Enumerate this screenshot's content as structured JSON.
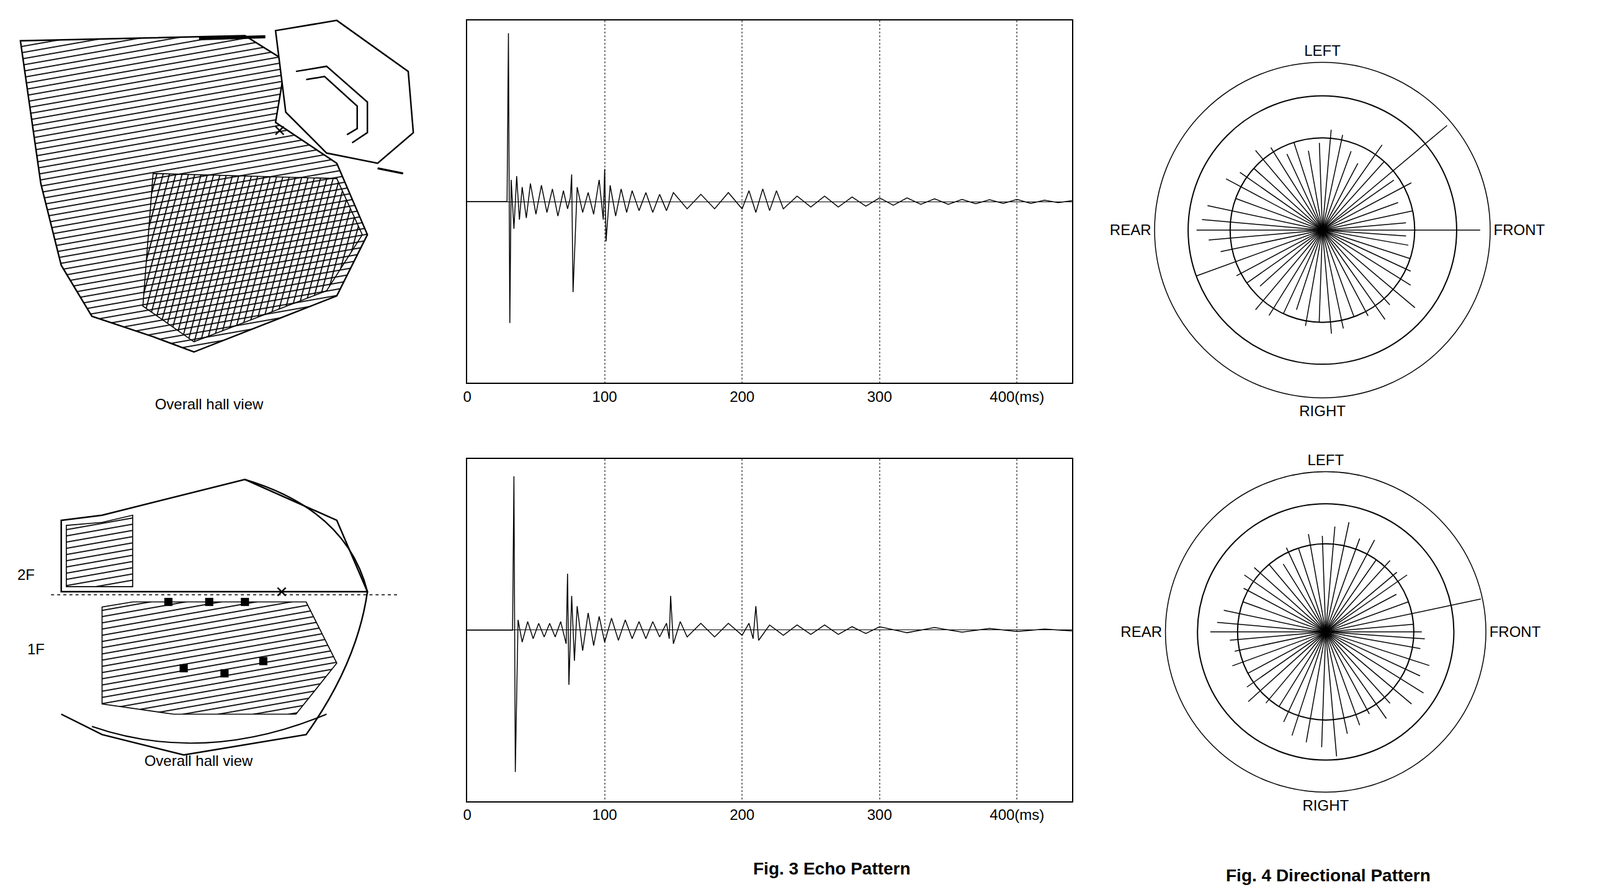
{
  "hall_views": [
    {
      "caption": "Overall hall view"
    },
    {
      "caption": "Overall hall view",
      "floor_labels": [
        "2F",
        "1F"
      ]
    }
  ],
  "captions": {
    "echo": "Fig. 3 Echo Pattern",
    "directional": "Fig. 4 Directional Pattern"
  },
  "chart_data": [
    {
      "type": "line",
      "color": "#000000",
      "grid": true,
      "tick_labels": "x",
      "xlim": [
        0,
        440
      ],
      "xticks": [
        0,
        100,
        200,
        300,
        {
          "value": 400,
          "label": "400(ms)"
        }
      ],
      "ylim": [
        -1,
        1
      ],
      "x": [
        0,
        29,
        30,
        31,
        32,
        34,
        36,
        38,
        40,
        43,
        46,
        50,
        54,
        58,
        62,
        66,
        70,
        73,
        75,
        76,
        77,
        80,
        84,
        88,
        92,
        96,
        99,
        100,
        101,
        104,
        108,
        112,
        116,
        120,
        125,
        130,
        135,
        140,
        145,
        150,
        160,
        170,
        180,
        190,
        200,
        205,
        210,
        215,
        220,
        225,
        230,
        240,
        250,
        260,
        270,
        280,
        290,
        300,
        310,
        320,
        330,
        340,
        350,
        360,
        370,
        380,
        390,
        400,
        410,
        420,
        430,
        440
      ],
      "values": [
        0,
        0,
        0.93,
        -0.67,
        0.12,
        -0.15,
        0.14,
        -0.1,
        0.08,
        -0.09,
        0.1,
        -0.07,
        0.09,
        -0.06,
        0.07,
        -0.08,
        0.06,
        -0.04,
        0.02,
        0.15,
        -0.5,
        0.08,
        -0.06,
        0.05,
        -0.07,
        0.12,
        -0.1,
        0.18,
        -0.22,
        0.09,
        -0.08,
        0.07,
        -0.06,
        0.06,
        -0.05,
        0.05,
        -0.06,
        0.04,
        -0.05,
        0.05,
        -0.04,
        0.04,
        -0.04,
        0.05,
        -0.04,
        0.06,
        -0.06,
        0.07,
        -0.05,
        0.06,
        -0.04,
        0.03,
        -0.03,
        0.03,
        -0.03,
        0.025,
        -0.025,
        0.02,
        -0.02,
        0.02,
        -0.015,
        0.015,
        -0.015,
        0.012,
        -0.012,
        0.01,
        -0.01,
        0.012,
        -0.01,
        0.008,
        -0.006,
        0.005
      ]
    },
    {
      "type": "line",
      "color": "#000000",
      "grid": true,
      "tick_labels": "x",
      "xlim": [
        0,
        440
      ],
      "xticks": [
        0,
        100,
        200,
        300,
        {
          "value": 400,
          "label": "400(ms)"
        }
      ],
      "ylim": [
        -1,
        1
      ],
      "x": [
        0,
        33,
        34,
        35,
        37,
        40,
        44,
        48,
        52,
        56,
        60,
        64,
        68,
        72,
        73,
        74,
        76,
        78,
        80,
        84,
        88,
        92,
        96,
        100,
        105,
        110,
        115,
        120,
        125,
        130,
        135,
        140,
        145,
        147,
        148,
        150,
        155,
        160,
        170,
        180,
        190,
        200,
        205,
        208,
        210,
        212,
        220,
        230,
        240,
        250,
        260,
        270,
        280,
        290,
        300,
        320,
        340,
        360,
        380,
        400,
        420,
        440
      ],
      "values": [
        0,
        0,
        0.9,
        -0.83,
        0.06,
        -0.07,
        0.05,
        -0.05,
        0.04,
        -0.04,
        0.04,
        -0.04,
        0.05,
        -0.08,
        0.33,
        -0.32,
        0.2,
        -0.18,
        0.14,
        -0.12,
        0.1,
        -0.09,
        0.08,
        -0.07,
        0.07,
        -0.06,
        0.06,
        -0.05,
        0.05,
        -0.05,
        0.05,
        -0.04,
        0.04,
        -0.05,
        0.2,
        -0.08,
        0.05,
        -0.04,
        0.04,
        -0.04,
        0.04,
        -0.03,
        0.04,
        -0.05,
        0.14,
        -0.06,
        0.03,
        -0.03,
        0.03,
        -0.025,
        0.03,
        -0.025,
        0.02,
        -0.02,
        0.02,
        -0.015,
        0.015,
        -0.012,
        0.01,
        -0.008,
        0.006,
        -0.005
      ]
    },
    {
      "type": "polar",
      "color": "#000000",
      "grid": true,
      "rlim": [
        0,
        1
      ],
      "rticks": [
        0.55,
        0.8,
        1.0
      ],
      "angular_ticks": [
        {
          "value": 0,
          "label": "FRONT"
        },
        {
          "value": 90,
          "label": "LEFT"
        },
        {
          "value": 180,
          "label": "REAR"
        },
        {
          "value": 270,
          "label": "RIGHT"
        }
      ],
      "angles": [
        0,
        5,
        12,
        20,
        28,
        35,
        40,
        48,
        55,
        62,
        70,
        78,
        85,
        92,
        100,
        108,
        115,
        122,
        130,
        138,
        145,
        152,
        160,
        168,
        175,
        180,
        185,
        192,
        200,
        208,
        215,
        222,
        230,
        238,
        245,
        252,
        260,
        268,
        275,
        282,
        290,
        298,
        305,
        312,
        320,
        328,
        335,
        342,
        350,
        356
      ],
      "values": [
        0.94,
        0.5,
        0.55,
        0.48,
        0.6,
        0.52,
        0.97,
        0.55,
        0.62,
        0.45,
        0.5,
        0.58,
        0.6,
        0.52,
        0.48,
        0.55,
        0.5,
        0.58,
        0.62,
        0.55,
        0.6,
        0.65,
        0.55,
        0.7,
        0.72,
        0.75,
        0.68,
        0.62,
        0.8,
        0.58,
        0.55,
        0.5,
        0.62,
        0.6,
        0.55,
        0.5,
        0.58,
        0.55,
        0.62,
        0.6,
        0.55,
        0.58,
        0.65,
        0.6,
        0.72,
        0.62,
        0.58,
        0.55,
        0.52,
        0.5
      ]
    },
    {
      "type": "polar",
      "color": "#000000",
      "grid": true,
      "rlim": [
        0,
        1
      ],
      "rticks": [
        0.55,
        0.8,
        1.0
      ],
      "angular_ticks": [
        {
          "value": 0,
          "label": "FRONT"
        },
        {
          "value": 90,
          "label": "LEFT"
        },
        {
          "value": 180,
          "label": "REAR"
        },
        {
          "value": 270,
          "label": "RIGHT"
        }
      ],
      "angles": [
        0,
        5,
        12,
        20,
        28,
        35,
        40,
        48,
        55,
        62,
        70,
        78,
        85,
        92,
        100,
        108,
        115,
        122,
        130,
        138,
        145,
        152,
        160,
        168,
        175,
        180,
        185,
        192,
        200,
        208,
        215,
        222,
        230,
        238,
        245,
        252,
        260,
        268,
        275,
        282,
        290,
        298,
        305,
        312,
        320,
        328,
        335,
        342,
        350,
        356
      ],
      "values": [
        0.6,
        0.55,
        0.99,
        0.55,
        0.5,
        0.62,
        0.58,
        0.6,
        0.55,
        0.65,
        0.62,
        0.7,
        0.66,
        0.6,
        0.62,
        0.55,
        0.58,
        0.5,
        0.55,
        0.6,
        0.62,
        0.58,
        0.55,
        0.65,
        0.68,
        0.72,
        0.6,
        0.58,
        0.62,
        0.55,
        0.6,
        0.65,
        0.58,
        0.55,
        0.62,
        0.68,
        0.7,
        0.72,
        0.78,
        0.65,
        0.62,
        0.58,
        0.66,
        0.6,
        0.7,
        0.72,
        0.65,
        0.68,
        0.6,
        0.62
      ]
    }
  ]
}
